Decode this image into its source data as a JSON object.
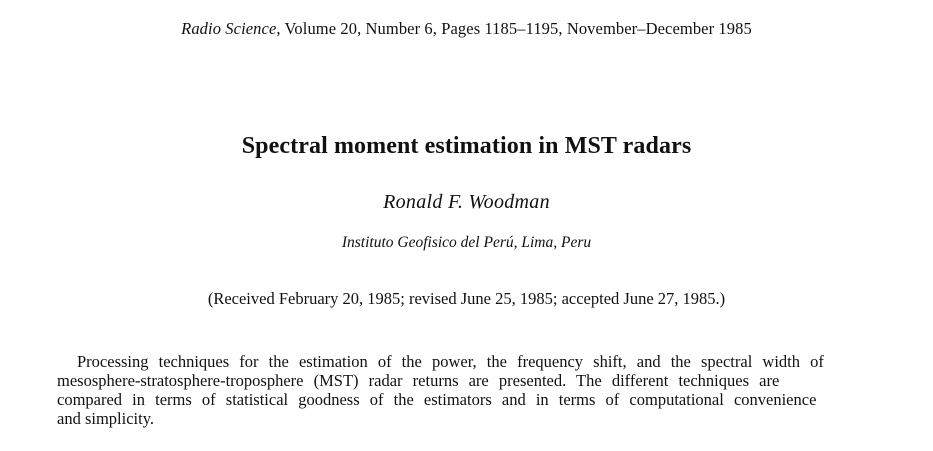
{
  "header": {
    "journal_name": "Radio Science",
    "citation": ", Volume 20, Number 6, Pages 1185–1195, November–December 1985"
  },
  "title": "Spectral moment estimation in MST radars",
  "author": "Ronald F. Woodman",
  "affiliation": "Instituto Geofisico del Perú, Lima, Peru",
  "dates": "(Received February 20, 1985; revised June 25, 1985; accepted June 27, 1985.)",
  "abstract": {
    "lines": [
      "Processing techniques for the estimation of the power, the frequency shift, and the spectral width of",
      "mesosphere-stratosphere-troposphere (MST) radar returns are presented. The different techniques are",
      "compared in terms of statistical goodness of the estimators and in terms of computational convenience",
      "and simplicity."
    ]
  }
}
